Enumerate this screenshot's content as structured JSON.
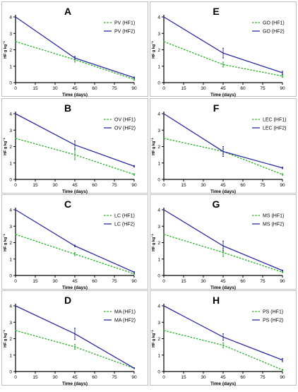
{
  "colors": {
    "hf1": "#22b022",
    "hf2": "#2b2ba0",
    "axis": "#000000",
    "frame": "#bfbfbf"
  },
  "chart_data": [
    {
      "type": "line",
      "panel": "A",
      "x": [
        0,
        45,
        90
      ],
      "xlabel": "Time (days)",
      "ylabel": "HF g kg",
      "xlim": [
        0,
        90
      ],
      "ylim": [
        0,
        4
      ],
      "xticks": [
        0,
        15,
        30,
        45,
        60,
        75,
        90
      ],
      "yticks": [
        0,
        1,
        2,
        3,
        4
      ],
      "legend": "top-right",
      "series": [
        {
          "name": "PV (HF1)",
          "style": "dashed",
          "values": [
            2.5,
            1.4,
            0.2
          ],
          "err": [
            0,
            0.15,
            0.05
          ]
        },
        {
          "name": "PV (HF2)",
          "style": "solid",
          "values": [
            4.0,
            1.5,
            0.3
          ],
          "err": [
            0,
            0.1,
            0.05
          ]
        }
      ]
    },
    {
      "type": "line",
      "panel": "E",
      "x": [
        0,
        45,
        90
      ],
      "xlabel": "Time (days)",
      "ylabel": "HF g kg",
      "xlim": [
        0,
        90
      ],
      "ylim": [
        0,
        4
      ],
      "xticks": [
        0,
        15,
        30,
        45,
        60,
        75,
        90
      ],
      "yticks": [
        0,
        1,
        2,
        3,
        4
      ],
      "legend": "top-right",
      "series": [
        {
          "name": "GO (HF1)",
          "style": "dashed",
          "values": [
            2.5,
            1.1,
            0.4
          ],
          "err": [
            0,
            0.15,
            0.08
          ]
        },
        {
          "name": "GO (HF2)",
          "style": "solid",
          "values": [
            4.0,
            1.8,
            0.6
          ],
          "err": [
            0,
            0.3,
            0.1
          ]
        }
      ]
    },
    {
      "type": "line",
      "panel": "B",
      "x": [
        0,
        45,
        90
      ],
      "xlabel": "Time (days)",
      "ylabel": "HF g kg",
      "xlim": [
        0,
        90
      ],
      "ylim": [
        0,
        4
      ],
      "xticks": [
        0,
        15,
        30,
        45,
        60,
        75,
        90
      ],
      "yticks": [
        0,
        1,
        2,
        3,
        4
      ],
      "legend": "top-right",
      "series": [
        {
          "name": "OV (HF1)",
          "style": "dashed",
          "values": [
            2.5,
            1.5,
            0.3
          ],
          "err": [
            0,
            0.3,
            0.05
          ]
        },
        {
          "name": "OV (HF2)",
          "style": "solid",
          "values": [
            4.0,
            2.1,
            0.8
          ],
          "err": [
            0,
            0.25,
            0.05
          ]
        }
      ]
    },
    {
      "type": "line",
      "panel": "F",
      "x": [
        0,
        45,
        90
      ],
      "xlabel": "Time (days)",
      "ylabel": "HF g kg",
      "xlim": [
        0,
        90
      ],
      "ylim": [
        0,
        4
      ],
      "xticks": [
        0,
        15,
        30,
        45,
        60,
        75,
        90
      ],
      "yticks": [
        0,
        1,
        2,
        3,
        4
      ],
      "legend": "top-right",
      "series": [
        {
          "name": "LEC (HF1)",
          "style": "dashed",
          "values": [
            2.5,
            1.7,
            0.3
          ],
          "err": [
            0,
            0.15,
            0.05
          ]
        },
        {
          "name": "LEC (HF2)",
          "style": "solid",
          "values": [
            4.0,
            1.7,
            0.7
          ],
          "err": [
            0,
            0.3,
            0.05
          ]
        }
      ]
    },
    {
      "type": "line",
      "panel": "C",
      "x": [
        0,
        45,
        90
      ],
      "xlabel": "Time (days)",
      "ylabel": "HF g kg",
      "xlim": [
        0,
        90
      ],
      "ylim": [
        0,
        4
      ],
      "xticks": [
        0,
        15,
        30,
        45,
        60,
        75,
        90
      ],
      "yticks": [
        0,
        1,
        2,
        3,
        4
      ],
      "legend": "top-right",
      "series": [
        {
          "name": "LC (HF1)",
          "style": "dashed",
          "values": [
            2.5,
            1.3,
            0.1
          ],
          "err": [
            0,
            0.1,
            0.03
          ]
        },
        {
          "name": "LC (HF2)",
          "style": "solid",
          "values": [
            4.0,
            1.8,
            0.2
          ],
          "err": [
            0,
            0.05,
            0.03
          ]
        }
      ]
    },
    {
      "type": "line",
      "panel": "G",
      "x": [
        0,
        45,
        90
      ],
      "xlabel": "Time (days)",
      "ylabel": "HF g kg",
      "xlim": [
        0,
        90
      ],
      "ylim": [
        0,
        4
      ],
      "xticks": [
        0,
        15,
        30,
        45,
        60,
        75,
        90
      ],
      "yticks": [
        0,
        1,
        2,
        3,
        4
      ],
      "legend": "top-right",
      "series": [
        {
          "name": "MS (HF1)",
          "style": "dashed",
          "values": [
            2.5,
            1.4,
            0.2
          ],
          "err": [
            0,
            0.25,
            0.03
          ]
        },
        {
          "name": "MS (HF2)",
          "style": "solid",
          "values": [
            4.0,
            1.8,
            0.3
          ],
          "err": [
            0,
            0.3,
            0.03
          ]
        }
      ]
    },
    {
      "type": "line",
      "panel": "D",
      "x": [
        0,
        45,
        90
      ],
      "xlabel": "Time (days)",
      "ylabel": "HF g kg",
      "xlim": [
        0,
        90
      ],
      "ylim": [
        0,
        4
      ],
      "xticks": [
        0,
        15,
        30,
        45,
        60,
        75,
        90
      ],
      "yticks": [
        0,
        1,
        2,
        3,
        4
      ],
      "legend": "top-right",
      "series": [
        {
          "name": "MA (HF1)",
          "style": "dashed",
          "values": [
            2.5,
            1.5,
            0.2
          ],
          "err": [
            0,
            0.15,
            0.03
          ]
        },
        {
          "name": "MA (HF2)",
          "style": "solid",
          "values": [
            4.0,
            2.3,
            0.2
          ],
          "err": [
            0,
            0.35,
            0.03
          ]
        }
      ]
    },
    {
      "type": "line",
      "panel": "H",
      "x": [
        0,
        45,
        90
      ],
      "xlabel": "Time (days)",
      "ylabel": "HF g kg",
      "xlim": [
        0,
        90
      ],
      "ylim": [
        0,
        4
      ],
      "xticks": [
        0,
        15,
        30,
        45,
        60,
        75,
        90
      ],
      "yticks": [
        0,
        1,
        2,
        3,
        4
      ],
      "legend": "top-right",
      "series": [
        {
          "name": "PS (HF1)",
          "style": "dashed",
          "values": [
            2.5,
            1.6,
            0.1
          ],
          "err": [
            0,
            0.15,
            0.03
          ]
        },
        {
          "name": "PS (HF2)",
          "style": "solid",
          "values": [
            4.0,
            2.1,
            0.7
          ],
          "err": [
            0,
            0.2,
            0.1
          ]
        }
      ]
    }
  ]
}
